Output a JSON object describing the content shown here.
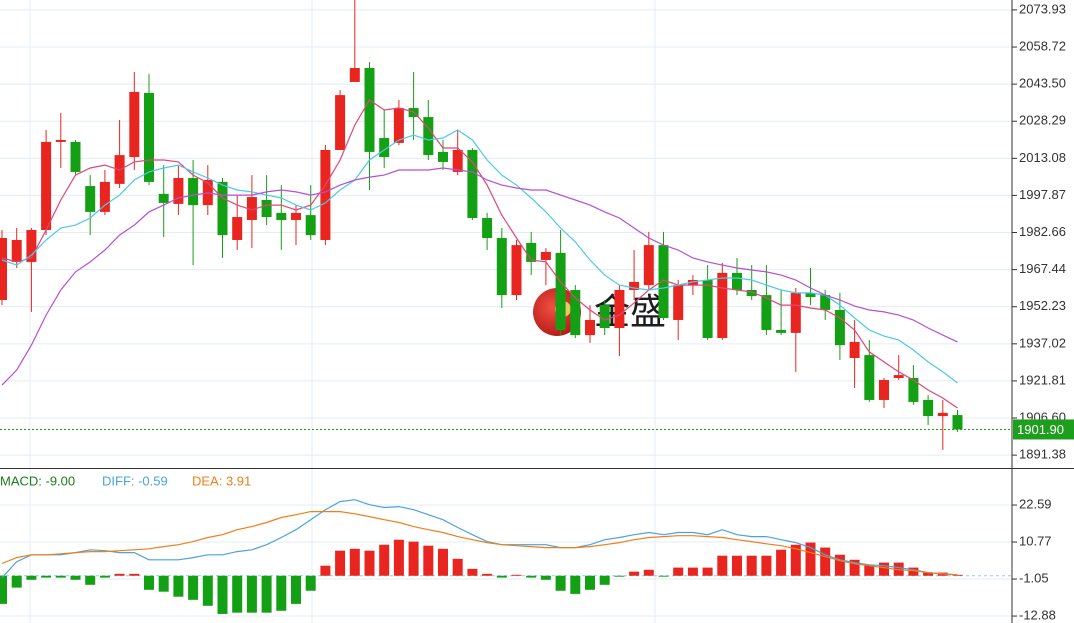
{
  "chart_data": [
    {
      "type": "candlestick",
      "open": [
        1955.0,
        1970.6,
        1970.6,
        1983.7,
        2019.8,
        2019.8,
        2001.7,
        1991.1,
        2002.6,
        2013.6,
        2039.9,
        1998.5,
        1994.4,
        2005.0,
        1993.9,
        2003.4,
        1979.6,
        1987.8,
        1996.0,
        1990.7,
        1987.8,
        1989.8,
        1979.6,
        2016.5,
        2044.4,
        2050.1,
        2021.4,
        2019.4,
        2033.7,
        2030.0,
        2015.7,
        2007.5,
        2016.5,
        1988.6,
        1980.4,
        1957.0,
        1978.4,
        1971.4,
        1974.3,
        1959.1,
        1940.6,
        1952.9,
        1943.5,
        1959.1,
        1961.1,
        1977.5,
        1946.8,
        1961.1,
        1963.2,
        1939.4,
        1966.1,
        1959.1,
        1957.0,
        1942.7,
        1941.5,
        1957.9,
        1957.0,
        1950.9,
        1931.2,
        1932.4,
        1914.0,
        1923.0,
        1923.0,
        1914.0,
        1907.4,
        1907.8
      ],
      "high": [
        1983.7,
        1984.5,
        1984.5,
        2024.7,
        2031.7,
        2020.6,
        2006.2,
        2008.3,
        2028.8,
        2048.5,
        2047.7,
        2010.3,
        2010.3,
        2012.4,
        2010.3,
        2005.0,
        1998.0,
        2006.2,
        2006.2,
        2002.1,
        1993.9,
        2002.1,
        2018.5,
        2041.1,
        2078.0,
        2052.6,
        2032.9,
        2037.0,
        2048.5,
        2037.0,
        2020.6,
        2024.7,
        2017.3,
        1990.7,
        1984.5,
        1979.6,
        1982.9,
        1976.3,
        1983.7,
        1961.1,
        1952.9,
        1955.0,
        1961.1,
        1975.5,
        1982.9,
        1982.9,
        1963.2,
        1965.2,
        1969.3,
        1970.2,
        1972.2,
        1969.3,
        1969.3,
        1959.1,
        1959.9,
        1968.1,
        1959.1,
        1957.9,
        1946.8,
        1938.6,
        1923.0,
        1932.4,
        1928.3,
        1916.0,
        1914.0,
        1909.9
      ],
      "low": [
        1952.9,
        1968.1,
        1950.1,
        1981.6,
        2009.1,
        2006.2,
        1981.6,
        1989.8,
        2000.9,
        2008.3,
        2002.1,
        1980.8,
        1989.8,
        1969.3,
        1989.8,
        1972.2,
        1975.5,
        1976.3,
        1985.7,
        1975.5,
        1977.5,
        1979.6,
        1977.5,
        2016.5,
        2044.4,
        2000.1,
        2009.1,
        2018.5,
        2020.6,
        2012.4,
        2008.3,
        2006.2,
        1987.8,
        1975.5,
        1951.7,
        1955.0,
        1965.2,
        1961.1,
        1940.6,
        1939.4,
        1937.4,
        1940.6,
        1932.0,
        1955.0,
        1959.1,
        1946.8,
        1938.6,
        1957.0,
        1938.6,
        1938.6,
        1957.0,
        1955.0,
        1940.6,
        1940.6,
        1925.5,
        1952.9,
        1946.8,
        1930.4,
        1918.9,
        1913.2,
        1910.7,
        1922.2,
        1912.0,
        1903.7,
        1893.5,
        1900.9
      ],
      "close": [
        1980.4,
        1979.6,
        1983.7,
        2019.8,
        2020.6,
        2007.5,
        1991.1,
        2003.4,
        2014.4,
        2040.3,
        2003.4,
        1994.8,
        2005.0,
        1993.9,
        2004.2,
        1981.6,
        1989.0,
        1997.2,
        1989.0,
        1987.8,
        1990.7,
        1981.6,
        2016.5,
        2039.0,
        2050.1,
        2015.7,
        2013.6,
        2033.7,
        2030.0,
        2014.4,
        2011.6,
        2016.5,
        1988.6,
        1980.4,
        1957.0,
        1977.5,
        1970.6,
        1974.7,
        1942.7,
        1940.6,
        1946.8,
        1943.5,
        1959.1,
        1962.4,
        1977.5,
        1947.6,
        1961.1,
        1963.2,
        1939.4,
        1966.1,
        1959.1,
        1956.6,
        1942.7,
        1941.5,
        1957.9,
        1956.2,
        1950.9,
        1936.5,
        1937.8,
        1914.0,
        1922.2,
        1924.2,
        1913.2,
        1907.4,
        1908.7,
        1901.9
      ],
      "up_color": "#e8251e",
      "down_color": "#14a014",
      "lines": [
        {
          "color": "#e0457b",
          "values": [
            1972.2,
            1970.6,
            1972.2,
            1983.7,
            1996.0,
            2006.2,
            2009.1,
            2010.3,
            2008.3,
            2011.6,
            2012.4,
            2012.4,
            2011.6,
            2006.2,
            2003.0,
            1996.8,
            1993.9,
            1991.9,
            1993.9,
            1993.9,
            1991.9,
            1993.9,
            2002.1,
            2012.4,
            2026.7,
            2037.0,
            2032.9,
            2033.7,
            2032.1,
            2025.5,
            2017.3,
            2017.3,
            2011.6,
            2002.1,
            1989.8,
            1980.4,
            1971.4,
            1970.6,
            1962.4,
            1955.8,
            1950.9,
            1946.8,
            1948.8,
            1953.8,
            1959.1,
            1963.2,
            1961.1,
            1961.1,
            1961.1,
            1959.9,
            1959.1,
            1958.3,
            1955.8,
            1952.9,
            1952.9,
            1951.7,
            1950.9,
            1947.6,
            1942.7,
            1933.7,
            1929.6,
            1925.5,
            1922.2,
            1918.1,
            1914.8,
            1910.7
          ]
        },
        {
          "color": "#4cc9e8",
          "values": [
            1971.4,
            1969.3,
            1973.4,
            1979.6,
            1984.5,
            1985.7,
            1988.6,
            1993.9,
            1998.0,
            2004.2,
            2007.5,
            2009.1,
            2010.3,
            2007.5,
            2005.0,
            2002.1,
            2000.1,
            1999.3,
            1998.0,
            1996.8,
            1993.9,
            1991.9,
            1994.8,
            2000.1,
            2004.2,
            2012.4,
            2016.5,
            2020.6,
            2022.6,
            2020.6,
            2021.4,
            2024.7,
            2020.6,
            2012.4,
            2006.2,
            2002.1,
            1996.8,
            1991.1,
            1984.5,
            1978.8,
            1971.4,
            1965.2,
            1961.1,
            1959.9,
            1959.1,
            1959.9,
            1961.1,
            1962.4,
            1963.2,
            1964.0,
            1964.0,
            1963.2,
            1961.1,
            1959.1,
            1957.9,
            1957.9,
            1957.0,
            1952.9,
            1947.6,
            1942.7,
            1940.2,
            1938.6,
            1934.5,
            1929.6,
            1925.5,
            1921.0
          ]
        },
        {
          "color": "#b84fd1",
          "values": [
            1920.1,
            1926.3,
            1936.5,
            1948.8,
            1959.1,
            1966.5,
            1970.6,
            1975.5,
            1981.6,
            1985.7,
            1991.1,
            1993.9,
            1996.8,
            1998.0,
            1998.9,
            1998.0,
            1998.0,
            1998.0,
            1999.3,
            2000.1,
            1999.3,
            1998.0,
            1999.3,
            2002.1,
            2004.2,
            2005.4,
            2006.2,
            2008.3,
            2008.3,
            2008.3,
            2009.1,
            2008.3,
            2007.5,
            2004.2,
            2002.1,
            2000.9,
            2000.1,
            2000.1,
            1998.0,
            1996.0,
            1993.9,
            1991.1,
            1988.6,
            1984.5,
            1980.4,
            1977.5,
            1975.5,
            1972.2,
            1970.6,
            1969.3,
            1968.1,
            1967.3,
            1966.5,
            1965.2,
            1963.2,
            1959.9,
            1957.0,
            1955.0,
            1952.5,
            1950.9,
            1950.1,
            1948.8,
            1946.8,
            1943.5,
            1940.6,
            1937.8
          ]
        }
      ],
      "ylim": [
        1886.1,
        2078.0
      ],
      "yticks": [
        2073.93,
        2058.72,
        {
          "value": 2043.5,
          "label": "2043.50"
        },
        2028.29,
        2013.08,
        1997.87,
        1982.66,
        1967.44,
        1952.23,
        1937.02,
        1921.81,
        {
          "value": 1906.6,
          "label": "1906.60"
        },
        1891.38
      ],
      "grid": true,
      "last_price": {
        "value": 1901.9,
        "label": "1901.90"
      },
      "last_color": "#1d9e1d"
    },
    {
      "type": "macd",
      "bars": {
        "label": "MACD: -9.00",
        "label_color": "#1a7f1a",
        "up_color": "#e8251e",
        "down_color": "#14a014",
        "values": [
          -9.0,
          -3.8,
          -1.3,
          -0.6,
          -0.6,
          -1.3,
          -2.9,
          -0.6,
          0.6,
          0.6,
          -4.5,
          -5.1,
          -6.7,
          -7.7,
          -9.6,
          -12.2,
          -11.8,
          -11.8,
          -11.8,
          -11.2,
          -9.0,
          -4.8,
          3.2,
          8.0,
          8.6,
          8.0,
          9.9,
          11.5,
          10.9,
          9.6,
          8.6,
          5.4,
          2.2,
          0.6,
          -0.6,
          0.3,
          -0.6,
          -1.3,
          -4.8,
          -5.8,
          -4.5,
          -2.9,
          -0.3,
          1.3,
          1.9,
          -0.3,
          2.6,
          2.6,
          2.6,
          6.4,
          6.4,
          6.4,
          6.4,
          8.3,
          9.9,
          10.6,
          9.0,
          6.7,
          5.1,
          3.5,
          4.2,
          4.2,
          2.6,
          1.0,
          1.0,
          0.3
        ]
      },
      "series": [
        {
          "label": "DIFF: -0.59",
          "color": "#4aa3df",
          "values": [
            -0.59,
            4.5,
            6.7,
            6.7,
            6.7,
            7.4,
            8.3,
            8.0,
            7.4,
            7.4,
            5.1,
            5.1,
            5.1,
            5.8,
            6.7,
            6.7,
            7.7,
            8.3,
            9.9,
            12.2,
            14.7,
            17.9,
            21.1,
            23.7,
            24.3,
            22.7,
            21.8,
            22.1,
            21.1,
            19.5,
            17.9,
            15.4,
            13.1,
            10.9,
            9.9,
            9.9,
            9.9,
            9.9,
            9.0,
            9.0,
            9.9,
            11.5,
            12.2,
            13.1,
            13.8,
            13.1,
            13.8,
            13.8,
            13.1,
            14.7,
            13.1,
            12.5,
            12.5,
            11.5,
            10.6,
            9.0,
            6.7,
            5.1,
            4.2,
            3.5,
            3.2,
            2.6,
            1.9,
            1.0,
            0.6,
            0.3
          ]
        },
        {
          "label": "DEA: 3.91",
          "color": "#f07f1a",
          "values": [
            3.91,
            5.8,
            6.7,
            6.7,
            7.0,
            7.4,
            7.7,
            7.7,
            8.0,
            8.3,
            8.6,
            9.3,
            9.9,
            10.9,
            12.2,
            13.1,
            14.7,
            15.7,
            17.0,
            18.6,
            19.5,
            20.5,
            20.5,
            20.5,
            19.8,
            18.9,
            17.9,
            17.0,
            15.7,
            14.7,
            13.8,
            12.5,
            11.5,
            10.6,
            9.9,
            9.6,
            9.3,
            9.0,
            9.0,
            9.0,
            9.3,
            9.9,
            10.6,
            11.5,
            12.2,
            12.5,
            12.8,
            12.8,
            12.5,
            12.2,
            11.5,
            10.9,
            10.2,
            9.6,
            8.6,
            7.4,
            6.1,
            4.8,
            3.8,
            3.2,
            2.6,
            1.9,
            1.6,
            1.0,
            0.6,
            0.3
          ]
        }
      ],
      "ylim": [
        -15.1,
        34.1
      ],
      "yticks": [
        22.59,
        10.77,
        -1.05,
        -12.88
      ],
      "grid": true
    }
  ],
  "watermark": "金盛"
}
